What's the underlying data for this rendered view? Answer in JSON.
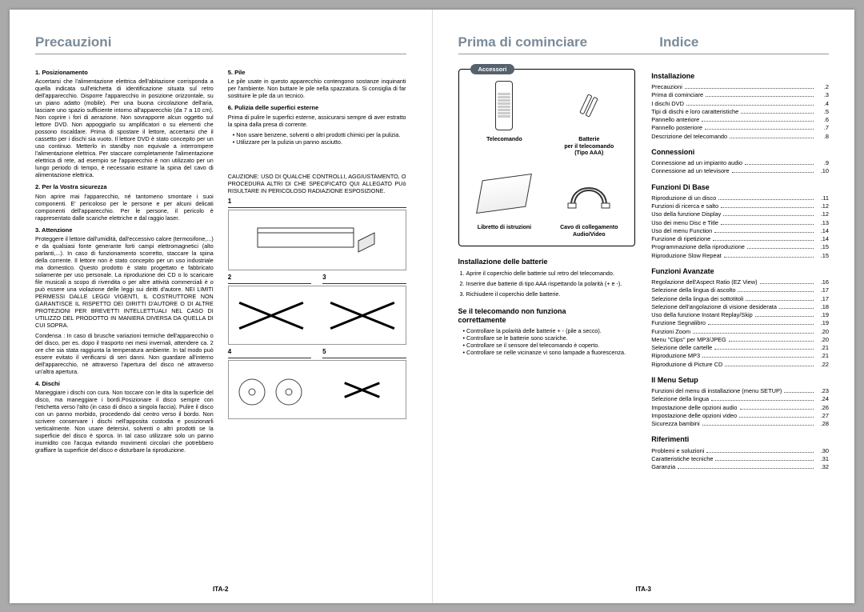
{
  "left": {
    "title": "Precauzioni",
    "col1": {
      "s1h": "1. Posizionamento",
      "s1": "Accertarsi che l'alimentazione elettrica dell'abitazione corrisponda a quella indicata sull'etichetta di identificazione situata sul retro dell'apparecchio. Disporre l'apparecchio in posizione orizzontale, su un piano adatto (mobile). Per una buona circolazione dell'aria, lasciare uno spazio sufficiente intorno all'apparecchio (da 7 a 10 cm). Non coprire i fori di aerazione. Non sovrapporre alcun oggetto sul lettore DVD. Non appoggiarlo su amplificatori o su elementi che possono riscaldare. Prima di spostare il lettore, accertarsi che il cassetto per i dischi sia vuoto. Il lettore DVD è stato concepito per un uso continuo. Metterlo in standby non equivale a interrompere l'alimentazione elettrica. Per staccare completamente l'alimentazione elettrica di rete, ad esempio se l'apparecchio è non utilizzato per un lungo periodo di tempo, è necessario estrarre la spina del cavo di alimentazione elettrica.",
      "s2h": "2. Per la Vostra sicurezza",
      "s2": "Non aprire mai l'apparecchio, né tantomeno smontare i suoi componenti. E' pericoloso per le persone e per alcuni delicati componenti dell'apparecchio. Per le persone, il pericolo è rappresentato dalle scariche elettriche e dal raggio laser.",
      "s3h": "3. Attenzione",
      "s3": "Proteggere il lettore dall'umidità, dall'eccessivo calore (termosifone,...) e da qualsiasi fonte generante forti campi elettromagnetici (alto parlanti,...). In caso di funzionamento scorretto, staccare la spina della corrente. Il lettore non è stato concepito per un uso industriale ma domestico. Questo prodotto è stato progettato e fabbricato solamente per uso personale. La riproduzione dei CD o lo scaricare file musicali a scopo di rivendita o per altre attività commerciali è o può essere una violazione delle leggi sui diritti d'autore. NEI LIMITI PERMESSI DALLE LEGGI VIGENTI, IL COSTRUTTORE NON GARANTISCE IL RISPETTO DEI DIRITTI D'AUTORE O DI ALTRE PROTEZIONI PER BREVETTI INTELLETTUALI NEL CASO DI UTILIZZO DEL PRODOTTO IN MANIERA DIVERSA DA QUELLA DI CUI SOPRA.",
      "s3b": "Condensa : In caso di brusche variazioni termiche dell'apparecchio o del disco, per es. dopo il trasporto nei mesi invernali, attendere ca. 2 ore che sia stata raggiunta la temperatura ambiente. In tal modo può essere evitato il verificarsi di seri danni. Non guardare all'interno dell'apparecchio, né attraverso l'apertura del disco né attraverso un'altra apertura.",
      "s4h": "4. Dischi",
      "s4": "Maneggiare i dischi con cura. Non toccare con le dita la superficie del disco, ma maneggiare i bordi.Posizionare il disco sempre con l'etichetta verso l'alto (in caso di disco a singola faccia). Pulire il disco con un panno morbido, procedendo dal centro verso il bordo. Non scrivere conservare i dischi nell'apposita custodia e posizionarli verticalmente. Non usare detersivi, solventi o altri prodotti se la superficie del disco è sporca. In tal caso utilizzare solo un panno inumidito con l'acqua evitando movimenti circolari che potrebbero graffiare la superficie del disco e disturbare la riproduzione."
    },
    "col2": {
      "s5h": "5. Pile",
      "s5": "Le pile usate in questo apparecchio contengono sostanze inquinanti per l'ambiente. Non buttare le pile nella spazzatura. Si consiglia di far sostituire le pile da un tecnico.",
      "s6h": "6. Pulizia delle superfici esterne",
      "s6": "Prima di pulire le superfici esterne, assicurarsi sempre di aver estratto la spina dalla presa di corrente.",
      "s6b1": "Non usare benzene, solventi o altri prodotti chimici per la pulizia.",
      "s6b2": "Utilizzare per la pulizia un panno asciutto.",
      "caution": "CAUZIONE: USO DI QUALCHE CONTROLLI, AGGIUSTAMENTO, O PROCEDURA ALTRI DI CHE SPECIFICATO QUI ALLEGATO PUò RISULTARE IN PERICOLOSO RADIAZIONE ESPOSIZIONE.",
      "n1": "1",
      "n2": "2",
      "n3": "3",
      "n4": "4",
      "n5": "5"
    },
    "footer": "ITA-2"
  },
  "right": {
    "title1": "Prima di cominciare",
    "title2": "Indice",
    "accTab": "Accessori",
    "acc": {
      "c1": "Telecomando",
      "c2a": "Batterie",
      "c2b": "per il telecomando",
      "c2c": "(Tipo AAA)",
      "c3": "Libretto di istruzioni",
      "c4a": "Cavo di collegamento",
      "c4b": "Audio/Video"
    },
    "inst_h": "Installazione delle batterie",
    "inst1": "Aprire il coperchio delle batterie sul retro del telecomando.",
    "inst2": "Inserire due batterie di tipo AAA rispettando la polarità (+ e -).",
    "inst3": "Richiudere il coperchio delle batterie.",
    "nf_h1": "Se il telecomando non funziona",
    "nf_h2": "correttamente",
    "nf1": "Controllare la polarità delle batterie + - (pile a secco).",
    "nf2": "Controllare se le batterie sono scariche.",
    "nf3": "Controllare se il sensore del telecomando è coperto.",
    "nf4": "Controllare se nelle vicinanze vi sono lampade a fluorescenza.",
    "toc": {
      "g1": "Installazione",
      "g1i": [
        [
          "Precauzioni",
          "2"
        ],
        [
          "Prima di cominciare",
          "3"
        ],
        [
          "I dischi DVD",
          "4"
        ],
        [
          "Tipi di dischi e loro caratteristiche",
          "5"
        ],
        [
          "Pannello anteriore",
          "6"
        ],
        [
          "Pannello posteriore",
          "7"
        ],
        [
          "Descrizione del telecomando",
          "8"
        ]
      ],
      "g2": "Connessioni",
      "g2i": [
        [
          "Connessione ad un impianto audio",
          "9"
        ],
        [
          "Connessione ad un televisore",
          "10"
        ]
      ],
      "g3": "Funzioni Di Base",
      "g3i": [
        [
          "Riproduzione di un disco",
          "11"
        ],
        [
          "Funzioni di ricerca e salto",
          "12"
        ],
        [
          "Uso della funzione Display",
          "12"
        ],
        [
          "Uso dei menu Disc e Title",
          "13"
        ],
        [
          "Uso del menu Function",
          "14"
        ],
        [
          "Funzione di ripetizione",
          "14"
        ],
        [
          "Programmazione della riproduzione",
          "15"
        ],
        [
          "Riproduzione Slow Repeat",
          "15"
        ]
      ],
      "g4": "Funzioni Avanzate",
      "g4i": [
        [
          "Regolazione dell'Aspect Ratio (EZ View)",
          "16"
        ],
        [
          "Selezione della lingua di ascolto",
          "17"
        ],
        [
          "Selezione della lingua dei sottotitoli",
          "17"
        ],
        [
          "Selezione dell'angolazione di visione desiderata",
          "18"
        ],
        [
          "Uso della funzione Instant Replay/Skip",
          "19"
        ],
        [
          "Funzione Segnalibro",
          "19"
        ],
        [
          "Funzioni Zoom",
          "20"
        ],
        [
          "Menu \"Clips\" per MP3/JPEG",
          "20"
        ],
        [
          "Selezione delle cartelle",
          "21"
        ],
        [
          "Riproduzione MP3",
          "21"
        ],
        [
          "Riproduzione di Picture CD",
          "22"
        ]
      ],
      "g5": "Il Menu Setup",
      "g5i": [
        [
          "Funzioni del menu di installazione (menu SETUP)",
          "23"
        ],
        [
          "Selezione della lingua",
          "24"
        ],
        [
          "Impostazione delle opzioni audio",
          "26"
        ],
        [
          "Impostazione delle opzioni video",
          "27"
        ],
        [
          "Sicurezza bambini",
          "28"
        ]
      ],
      "g6": "Riferimenti",
      "g6i": [
        [
          "Problemi e soluzioni",
          "30"
        ],
        [
          "Caratteristiche tecniche",
          "31"
        ],
        [
          "Garanzia",
          "32"
        ]
      ]
    },
    "footer": "ITA-3"
  }
}
